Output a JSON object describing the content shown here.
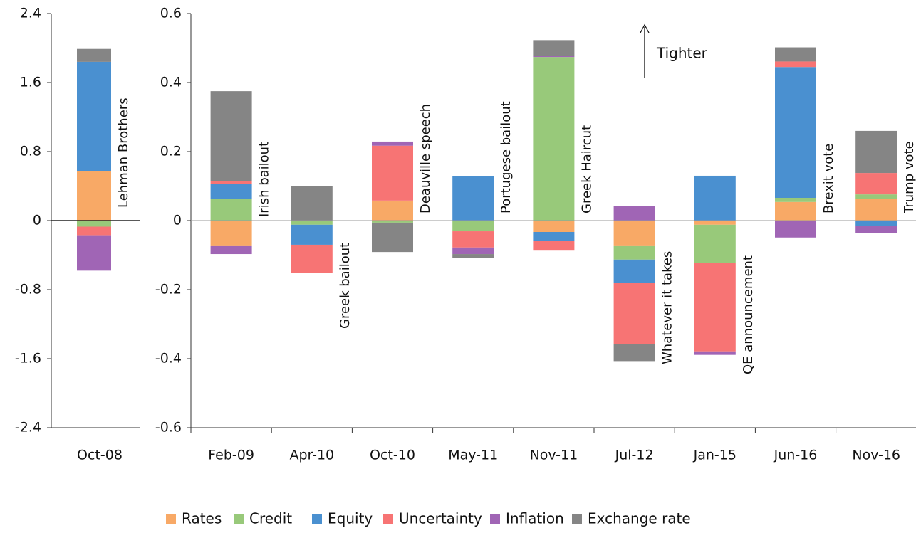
{
  "chart_data": [
    {
      "type": "stacked_bar",
      "categories": [
        "Oct-08"
      ],
      "ylim": [
        -2.4,
        2.4
      ],
      "yticks": [
        2.4,
        1.6,
        0.8,
        0,
        -0.8,
        -1.6,
        -2.4
      ],
      "annotations": [
        "Lehman Brothers"
      ],
      "series": [
        {
          "name": "Rates",
          "color": "#f8a966",
          "values": [
            0.57
          ]
        },
        {
          "name": "Credit",
          "color": "#98c97a",
          "values": [
            -0.07
          ]
        },
        {
          "name": "Equity",
          "color": "#4a90d0",
          "values": [
            1.27
          ]
        },
        {
          "name": "Uncertainty",
          "color": "#f77474",
          "values": [
            -0.1
          ]
        },
        {
          "name": "Inflation",
          "color": "#a065b5",
          "values": [
            -0.41
          ]
        },
        {
          "name": "Exchange rate",
          "color": "#858585",
          "values": [
            0.15
          ]
        }
      ]
    },
    {
      "type": "stacked_bar",
      "categories": [
        "Feb-09",
        "Apr-10",
        "Oct-10",
        "May-11",
        "Nov-11",
        "Jul-12",
        "Jan-15",
        "Jun-16",
        "Nov-16"
      ],
      "ylim": [
        -0.6,
        0.6
      ],
      "yticks": [
        0.6,
        0.4,
        0.2,
        0,
        -0.2,
        -0.4,
        -0.6
      ],
      "annotations": [
        "Irish  bailout",
        "Greek bailout",
        "Deauville speech",
        "Portugese bailout",
        "Greek Haircut",
        "Whatever it takes",
        "QE   announcement",
        "Brexit vote",
        "Trump vote"
      ],
      "note": "Tighter",
      "series": [
        {
          "name": "Rates",
          "color": "#f8a966",
          "values": [
            -0.072,
            0,
            0.058,
            0,
            -0.033,
            -0.072,
            -0.012,
            0.054,
            0.062
          ]
        },
        {
          "name": "Credit",
          "color": "#98c97a",
          "values": [
            0.062,
            -0.012,
            -0.006,
            -0.031,
            0.474,
            -0.041,
            -0.111,
            0.012,
            0.014
          ]
        },
        {
          "name": "Equity",
          "color": "#4a90d0",
          "values": [
            0.045,
            -0.058,
            0,
            0.128,
            -0.025,
            -0.068,
            0.13,
            0.379,
            -0.016
          ]
        },
        {
          "name": "Uncertainty",
          "color": "#f77474",
          "values": [
            0.008,
            -0.082,
            0.159,
            -0.047,
            -0.029,
            -0.177,
            -0.256,
            0.016,
            0.062
          ]
        },
        {
          "name": "Inflation",
          "color": "#a065b5",
          "values": [
            -0.025,
            0,
            0.012,
            -0.019,
            0.004,
            0.043,
            -0.01,
            -0.049,
            -0.021
          ]
        },
        {
          "name": "Exchange rate",
          "color": "#858585",
          "values": [
            0.26,
            0.099,
            -0.085,
            -0.012,
            0.045,
            -0.049,
            0,
            0.041,
            0.122
          ]
        }
      ]
    }
  ]
}
